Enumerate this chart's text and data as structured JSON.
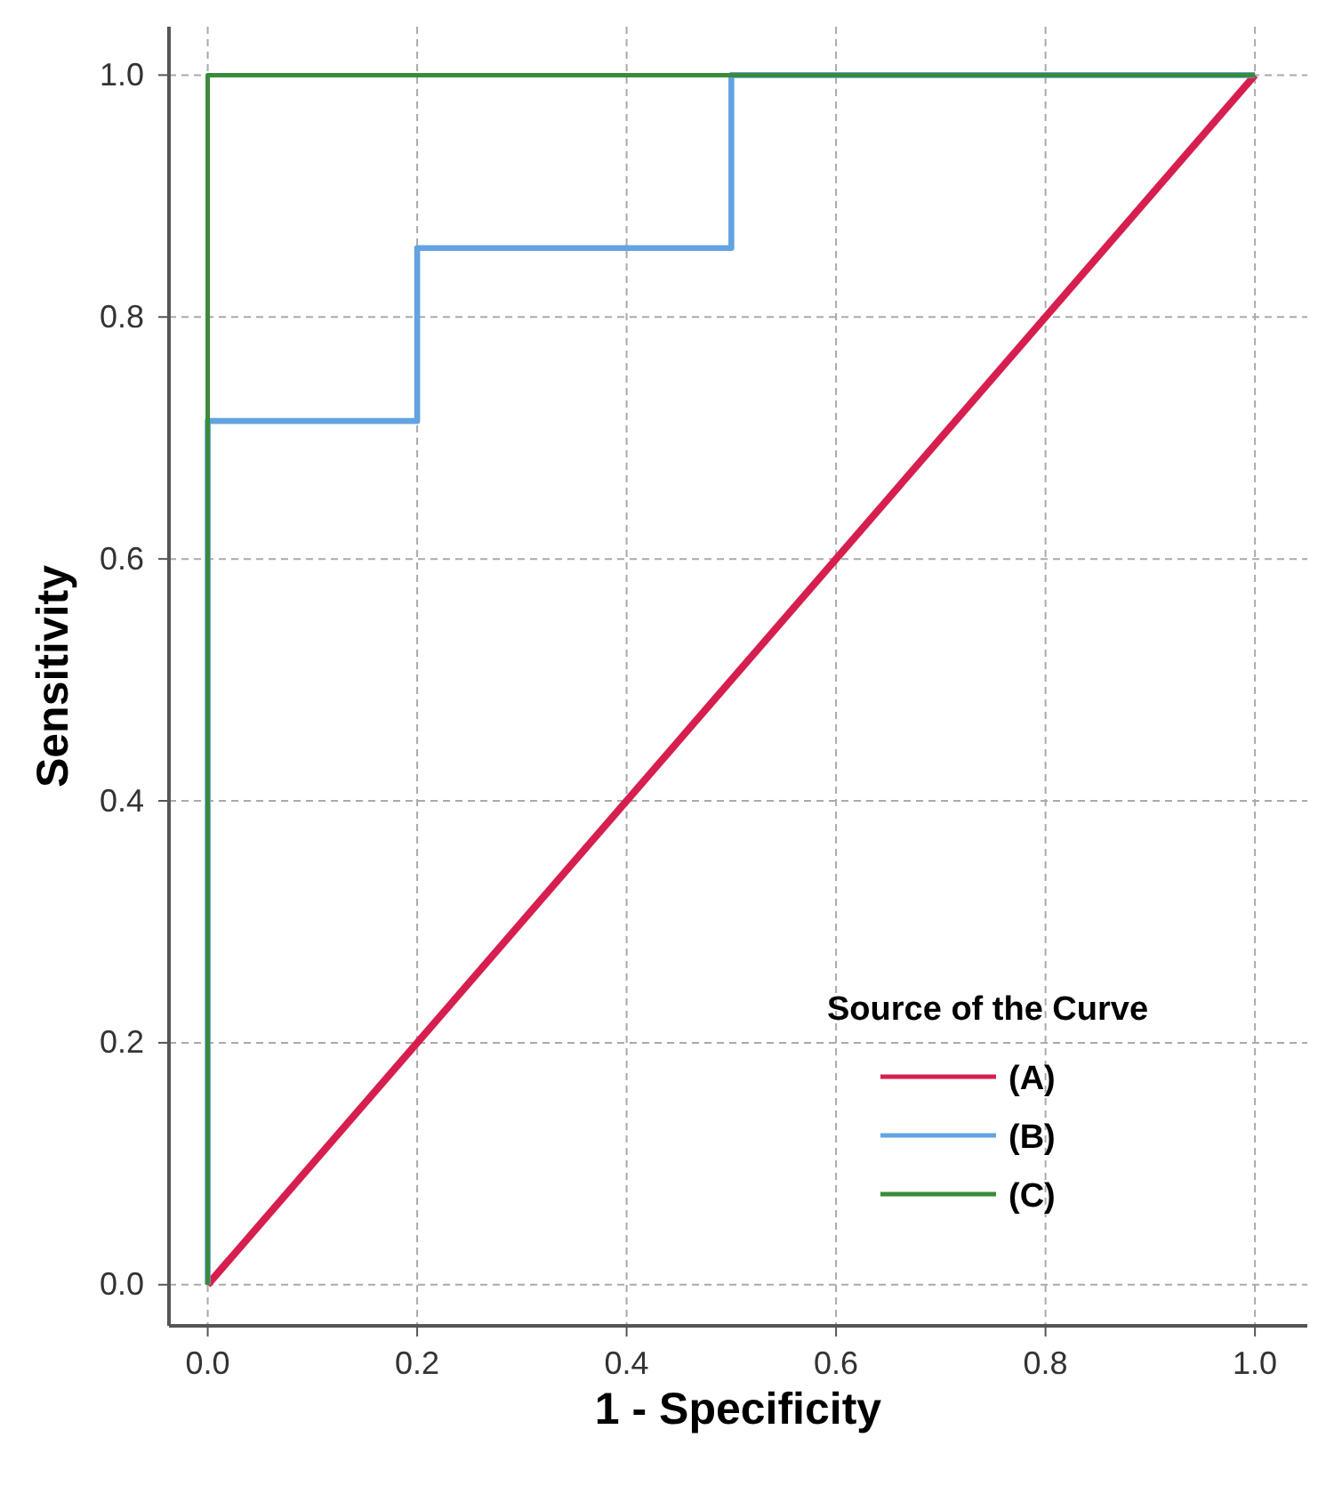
{
  "chart_data": {
    "type": "line",
    "xlabel": "1 - Specificity",
    "ylabel": "Sensitivity",
    "legend_title": "Source of the Curve",
    "xlim": [
      -0.037,
      1.05
    ],
    "ylim": [
      -0.034,
      1.04
    ],
    "xticks": [
      {
        "value": 0,
        "label": "0.0"
      },
      {
        "value": 0.2,
        "label": "0.2"
      },
      {
        "value": 0.4,
        "label": "0.4"
      },
      {
        "value": 0.6,
        "label": "0.6"
      },
      {
        "value": 0.8,
        "label": "0.8"
      },
      {
        "value": 1,
        "label": "1.0"
      }
    ],
    "yticks": [
      {
        "value": 0,
        "label": "0.0"
      },
      {
        "value": 0.2,
        "label": "0.2"
      },
      {
        "value": 0.4,
        "label": "0.4"
      },
      {
        "value": 0.6,
        "label": "0.6"
      },
      {
        "value": 0.8,
        "label": "0.8"
      },
      {
        "value": 1,
        "label": "1.0"
      }
    ],
    "grid": true,
    "legend": "bottom right",
    "marker": "none",
    "line_style": "solid",
    "series": [
      {
        "name": "(A)",
        "color": "#d61f4f",
        "x": [
          0,
          1
        ],
        "values": [
          0,
          1
        ]
      },
      {
        "name": "(B)",
        "color": "#62a3e0",
        "x": [
          0,
          0,
          0.2,
          0.2,
          0.5,
          0.5,
          1
        ],
        "values": [
          0,
          0.714,
          0.714,
          0.857,
          0.857,
          1,
          1
        ]
      },
      {
        "name": "(C)",
        "color": "#3a8a3a",
        "x": [
          0,
          0,
          1
        ],
        "values": [
          0,
          1,
          1
        ]
      }
    ]
  }
}
